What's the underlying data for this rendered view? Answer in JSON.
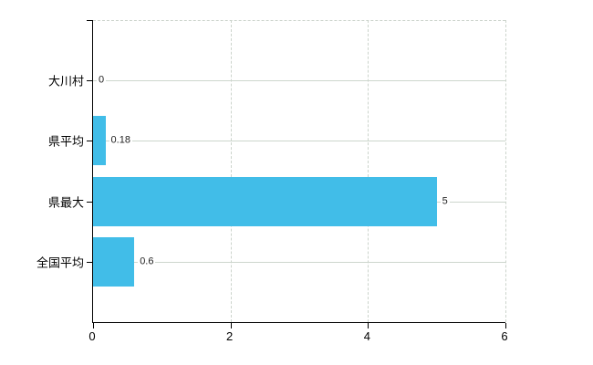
{
  "chart_data": {
    "type": "bar",
    "orientation": "horizontal",
    "title": "",
    "xlabel": "",
    "ylabel": "",
    "categories": [
      "大川村",
      "県平均",
      "県最大",
      "全国平均"
    ],
    "values": [
      0,
      0.18,
      5,
      0.6
    ],
    "value_labels": [
      "0",
      "0.18",
      "5",
      "0.6"
    ],
    "x_ticks": [
      0,
      2,
      4,
      6
    ],
    "x_tick_labels": [
      "0",
      "2",
      "4",
      "6"
    ],
    "xlim": [
      0,
      6
    ],
    "grid": true,
    "legend": "none",
    "colors": {
      "bar": "#41bde8",
      "grid_solid": "#cdd6cd",
      "grid_dashed": "#ccd4cc",
      "axis": "#000000",
      "text": "#222222"
    }
  }
}
